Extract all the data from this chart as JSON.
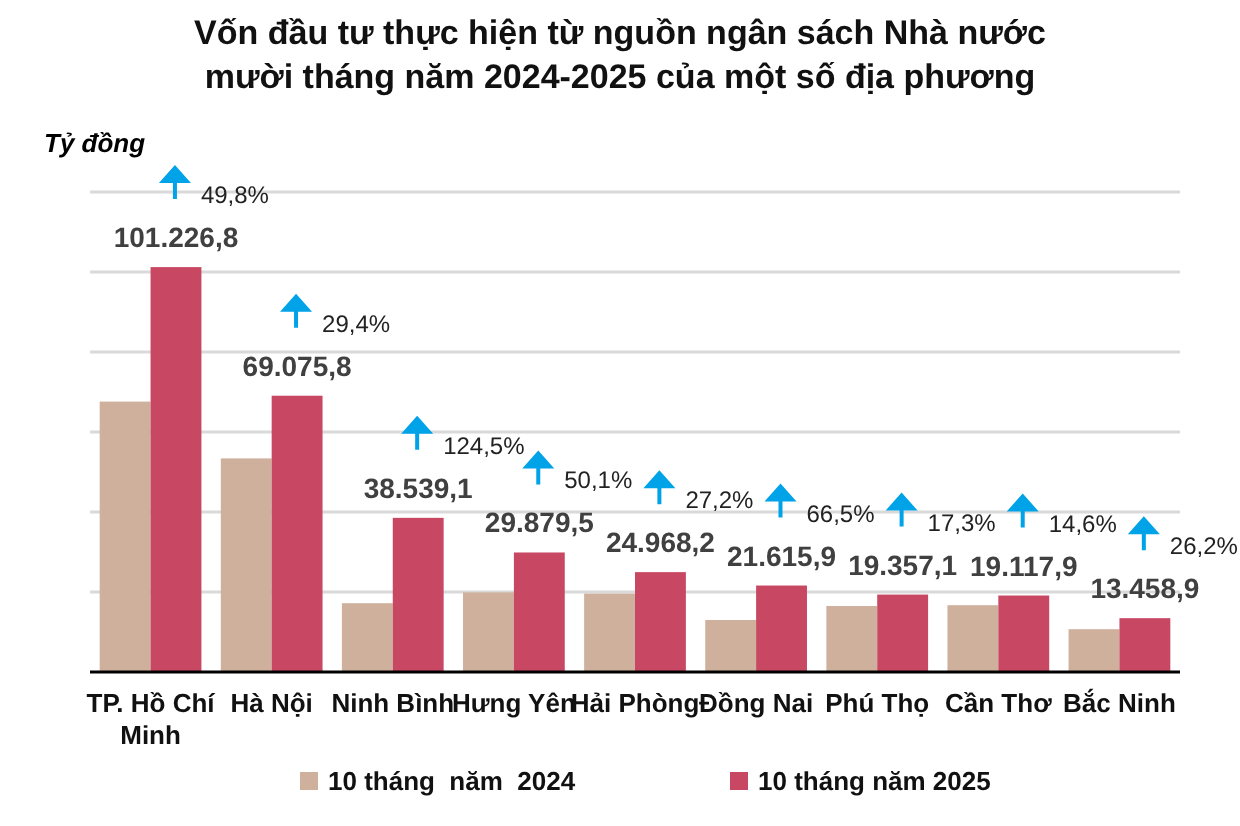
{
  "chart_data": {
    "type": "bar",
    "title": "Vốn đầu tư thực hiện từ nguồn ngân sách Nhà nước\nmười tháng năm 2024-2025 của một số địa phương",
    "ylabel": "Tỷ đồng",
    "categories": [
      "TP. Hồ Chí Minh",
      "Hà Nội",
      "Ninh Bình",
      "Hưng Yên",
      "Hải Phòng",
      "Đồng Nai",
      "Phú Thọ",
      "Cần Thơ",
      "Bắc Ninh"
    ],
    "series": [
      {
        "name": "10 tháng  năm  2024",
        "color": "#cfb09c",
        "values": [
          67600,
          53400,
          17200,
          19900,
          19600,
          13000,
          16500,
          16700,
          10700
        ]
      },
      {
        "name": "10 tháng năm 2025",
        "color": "#c84863",
        "values": [
          101226.8,
          69075.8,
          38539.1,
          29879.5,
          24968.2,
          21615.9,
          19357.1,
          19117.9,
          13458.9
        ],
        "value_labels": [
          "101.226,8",
          "69.075,8",
          "38.539,1",
          "29.879,5",
          "24.968,2",
          "21.615,9",
          "19.357,1",
          "19.117,9",
          "13.458,9"
        ]
      }
    ],
    "ylim": [
      0,
      120000
    ],
    "yticks": [
      {
        "value": 0,
        "label": null
      },
      {
        "value": 20000,
        "label": null
      },
      {
        "value": 40000,
        "label": null
      },
      {
        "value": 60000,
        "label": null
      },
      {
        "value": 80000,
        "label": null
      },
      {
        "value": 100000,
        "label": null
      },
      {
        "value": 120000,
        "label": null
      }
    ],
    "tick_labels": "x",
    "grid": "y",
    "legend": "bottom",
    "annotations": [
      "49,8%",
      "29,4%",
      "124,5%",
      "50,1%",
      "27,2%",
      "66,5%",
      "17,3%",
      "14,6%",
      "26,2%"
    ]
  }
}
